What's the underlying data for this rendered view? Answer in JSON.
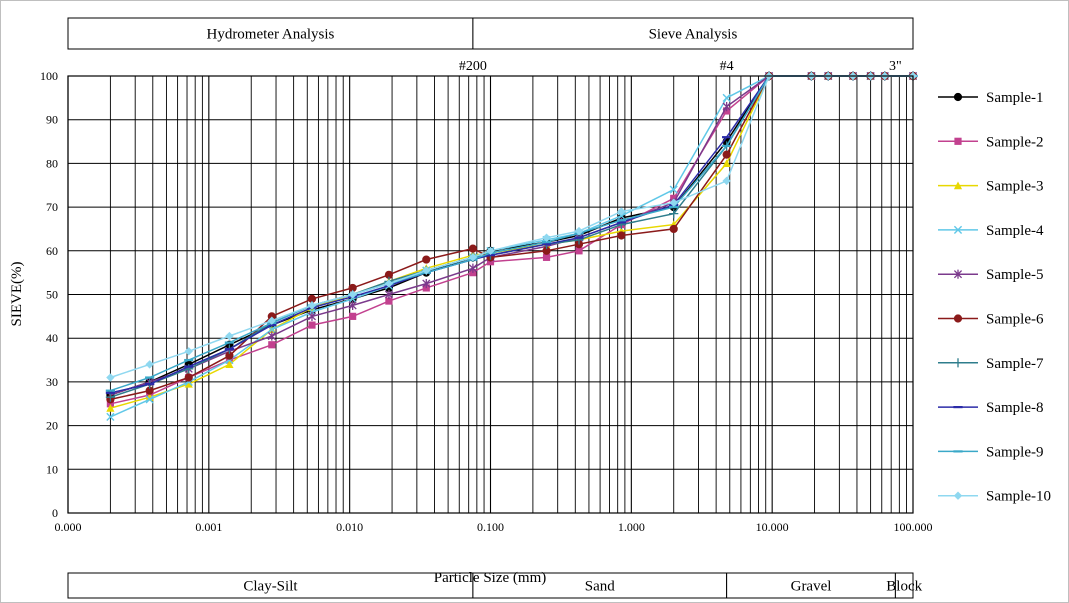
{
  "colors": {
    "Sample-1": "#000000",
    "Sample-2": "#c2418f",
    "Sample-3": "#e8d800",
    "Sample-4": "#60c8e8",
    "Sample-5": "#7b3a8c",
    "Sample-6": "#8b1a1a",
    "Sample-7": "#2e7d8c",
    "Sample-8": "#2b2ba8",
    "Sample-9": "#3aa8c8",
    "Sample-10": "#8fd8f0"
  },
  "chart_data": {
    "type": "line",
    "x_scale": "log",
    "xlabel": "Particle Size (mm)",
    "ylabel": "SIEVE(%)",
    "xlim": [
      0.0001,
      100
    ],
    "ylim": [
      0,
      100
    ],
    "x_ticks": [
      0.0001,
      0.001,
      0.01,
      0.1,
      1,
      10,
      100
    ],
    "x_tick_labels": [
      "0.000",
      "0.001",
      "0.010",
      "0.100",
      "1.000",
      "10.000",
      "100.000"
    ],
    "y_ticks": [
      0,
      10,
      20,
      30,
      40,
      50,
      60,
      70,
      80,
      90,
      100
    ],
    "y_tick_labels": [
      "0",
      "10",
      "20",
      "30",
      "40",
      "50",
      "60",
      "70",
      "80",
      "90",
      "100"
    ],
    "grid": true,
    "legend_position": "right",
    "top_bands": [
      {
        "label": "Hydrometer Analysis",
        "from": 0.0001,
        "to": 0.075
      },
      {
        "label": "Sieve Analysis",
        "from": 0.075,
        "to": 100
      }
    ],
    "bottom_bands": [
      {
        "label": "Clay-Silt",
        "from": 0.0001,
        "to": 0.075
      },
      {
        "label": "Sand",
        "from": 0.075,
        "to": 4.75
      },
      {
        "label": "Gravel",
        "from": 4.75,
        "to": 75
      },
      {
        "label": "Block",
        "from": 75,
        "to": 100
      }
    ],
    "sieve_markers": [
      {
        "label": "#200",
        "x": 0.075
      },
      {
        "label": "#4",
        "x": 4.75
      },
      {
        "label": "3\"",
        "x": 75
      }
    ],
    "x": [
      0.0002,
      0.00038,
      0.00072,
      0.0014,
      0.0028,
      0.0054,
      0.0105,
      0.019,
      0.035,
      0.075,
      0.1,
      0.25,
      0.425,
      0.85,
      2.0,
      4.75,
      9.5,
      19,
      25,
      37.5,
      50,
      63,
      100
    ],
    "series": [
      {
        "name": "Sample-1",
        "marker": "circle",
        "values": [
          27.0,
          30.0,
          34.0,
          38.5,
          43.0,
          46.5,
          49.0,
          51.5,
          55.0,
          58.5,
          60.0,
          62.0,
          63.5,
          67.5,
          70.0,
          85.0,
          100,
          100,
          100,
          100,
          100,
          100,
          100
        ]
      },
      {
        "name": "Sample-2",
        "marker": "square",
        "values": [
          25.0,
          27.0,
          31.0,
          35.0,
          38.5,
          43.0,
          45.0,
          48.5,
          51.5,
          55.0,
          57.5,
          58.5,
          60.0,
          66.0,
          72.0,
          92.0,
          100,
          100,
          100,
          100,
          100,
          100,
          100
        ]
      },
      {
        "name": "Sample-3",
        "marker": "triangle",
        "values": [
          24.0,
          26.5,
          29.5,
          34.0,
          42.0,
          47.0,
          50.0,
          53.0,
          56.0,
          59.0,
          59.5,
          61.5,
          62.5,
          64.5,
          66.0,
          80.0,
          100,
          100,
          100,
          100,
          100,
          100,
          100
        ]
      },
      {
        "name": "Sample-4",
        "marker": "x",
        "values": [
          22.0,
          26.0,
          30.0,
          35.0,
          42.0,
          46.0,
          49.0,
          52.0,
          55.5,
          58.5,
          60.0,
          62.5,
          64.0,
          68.0,
          74.0,
          95.0,
          100,
          100,
          100,
          100,
          100,
          100,
          100
        ]
      },
      {
        "name": "Sample-5",
        "marker": "star",
        "values": [
          27.0,
          30.0,
          33.0,
          37.0,
          40.5,
          45.0,
          47.5,
          50.0,
          52.5,
          56.0,
          58.5,
          61.0,
          63.0,
          66.5,
          71.0,
          93.0,
          100,
          100,
          100,
          100,
          100,
          100,
          100
        ]
      },
      {
        "name": "Sample-6",
        "marker": "circle",
        "values": [
          26.0,
          28.0,
          31.0,
          36.0,
          45.0,
          49.0,
          51.5,
          54.5,
          58.0,
          60.5,
          58.5,
          60.0,
          61.5,
          63.5,
          65.0,
          82.0,
          100,
          100,
          100,
          100,
          100,
          100,
          100
        ]
      },
      {
        "name": "Sample-7",
        "marker": "plus",
        "values": [
          26.5,
          29.5,
          33.0,
          37.5,
          43.5,
          47.5,
          50.0,
          53.0,
          55.5,
          58.5,
          59.0,
          61.5,
          62.5,
          66.0,
          68.5,
          84.0,
          100,
          100,
          100,
          100,
          100,
          100,
          100
        ]
      },
      {
        "name": "Sample-8",
        "marker": "dash",
        "values": [
          27.5,
          29.5,
          33.5,
          37.5,
          43.0,
          47.0,
          49.5,
          52.0,
          55.0,
          58.0,
          59.0,
          61.5,
          63.0,
          66.5,
          70.5,
          86.0,
          100,
          100,
          100,
          100,
          100,
          100,
          100
        ]
      },
      {
        "name": "Sample-9",
        "marker": "dash",
        "values": [
          28.0,
          31.0,
          35.0,
          39.0,
          43.5,
          47.5,
          50.0,
          52.5,
          55.0,
          58.0,
          59.5,
          62.0,
          64.0,
          67.0,
          70.0,
          84.0,
          100,
          100,
          100,
          100,
          100,
          100,
          100
        ]
      },
      {
        "name": "Sample-10",
        "marker": "diamond",
        "values": [
          31.0,
          34.0,
          37.0,
          40.5,
          44.0,
          47.5,
          50.0,
          52.5,
          55.5,
          58.5,
          60.0,
          63.0,
          64.5,
          69.0,
          71.0,
          76.0,
          100,
          100,
          100,
          100,
          100,
          100,
          100
        ]
      }
    ]
  }
}
